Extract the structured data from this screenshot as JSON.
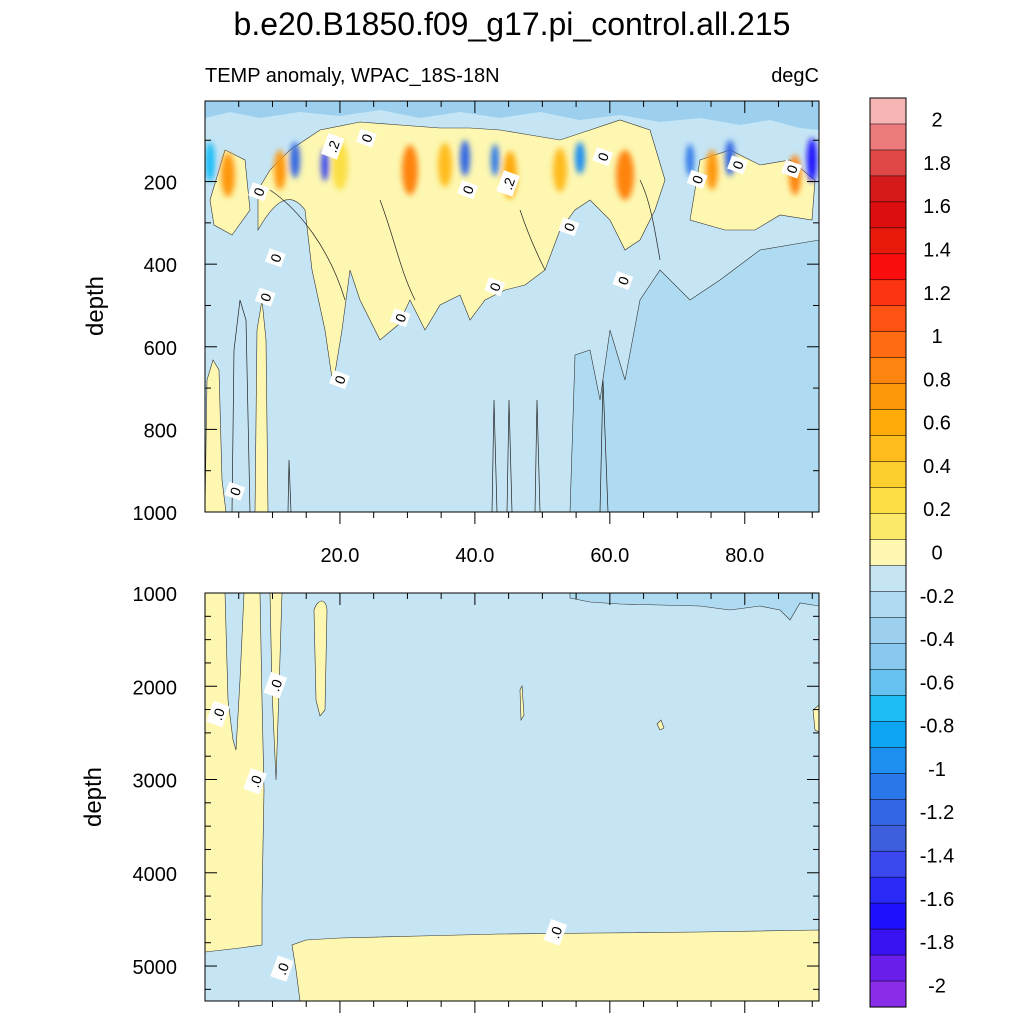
{
  "chart_data": {
    "type": "heatmap",
    "title": "b.e20.B1850.f09_g17.pi_control.all.215",
    "subtitle_left": "TEMP anomaly, WPAC_18S-18N",
    "subtitle_right": "degC",
    "xlabel": "",
    "x_range": [
      0,
      91
    ],
    "x_ticks": [
      "20.0",
      "40.0",
      "60.0",
      "80.0"
    ],
    "x_tick_values": [
      20,
      40,
      60,
      80
    ],
    "colorbar": {
      "min": -2.1,
      "max": 2.1,
      "step": 0.1,
      "labels": [
        "2",
        "1.8",
        "1.6",
        "1.4",
        "1.2",
        "1",
        "0.8",
        "0.6",
        "0.4",
        "0.2",
        "0",
        "-0.2",
        "-0.4",
        "-0.6",
        "-0.8",
        "-1",
        "-1.2",
        "-1.4",
        "-1.6",
        "-1.8",
        "-2"
      ],
      "label_values": [
        2,
        1.8,
        1.6,
        1.4,
        1.2,
        1,
        0.8,
        0.6,
        0.4,
        0.2,
        0,
        -0.2,
        -0.4,
        -0.6,
        -0.8,
        -1,
        -1.2,
        -1.4,
        -1.6,
        -1.8,
        -2
      ],
      "colors": [
        "#f6b4b4",
        "#ee7b7b",
        "#e04848",
        "#d41a1a",
        "#dc0e0e",
        "#e81a0c",
        "#fb0d0d",
        "#fd3412",
        "#fe5312",
        "#fe6b12",
        "#fe8410",
        "#fe980b",
        "#ffab09",
        "#ffbc1c",
        "#fcce2e",
        "#fbdf44",
        "#fbe969",
        "#fdf7b1",
        "#c5e5f4",
        "#aedbf1",
        "#9dd0ef",
        "#89c8ee",
        "#66c2f0",
        "#1fbdf6",
        "#0ea6f3",
        "#1e8ef1",
        "#2a77e9",
        "#3366e4",
        "#3e5fdd",
        "#3a48ee",
        "#2a2af6",
        "#1e10fb",
        "#3a12f1",
        "#6a1eec",
        "#8a2de9"
      ]
    },
    "panels": [
      {
        "name": "upper-ocean",
        "ylabel": "depth",
        "y_range": [
          5,
          1000
        ],
        "y_ticks": [
          "200",
          "400",
          "600",
          "800",
          "1000"
        ],
        "y_tick_values": [
          200,
          400,
          600,
          800,
          1000
        ],
        "contour_labels": [
          {
            "text": "0",
            "x": 4.5,
            "y": 950
          },
          {
            "text": "0",
            "x": 8,
            "y": 225
          },
          {
            "text": "0",
            "x": 9,
            "y": 480
          },
          {
            "text": "0",
            "x": 10.5,
            "y": 385
          },
          {
            "text": "0",
            "x": 20,
            "y": 680
          },
          {
            "text": ".2",
            "x": 19,
            "y": 115
          },
          {
            "text": "0",
            "x": 24,
            "y": 95
          },
          {
            "text": "0",
            "x": 29,
            "y": 530
          },
          {
            "text": "0",
            "x": 39,
            "y": 220
          },
          {
            "text": ".2",
            "x": 45,
            "y": 205
          },
          {
            "text": "0",
            "x": 43,
            "y": 455
          },
          {
            "text": "0",
            "x": 54,
            "y": 310
          },
          {
            "text": "0",
            "x": 59,
            "y": 140
          },
          {
            "text": "0",
            "x": 62,
            "y": 440
          },
          {
            "text": "0",
            "x": 73,
            "y": 195
          },
          {
            "text": "0",
            "x": 79,
            "y": 160
          },
          {
            "text": "0",
            "x": 87,
            "y": 170
          }
        ]
      },
      {
        "name": "deep-ocean",
        "ylabel": "depth",
        "y_range": [
          1000,
          5375
        ],
        "y_ticks": [
          "1000",
          "2000",
          "3000",
          "4000",
          "5000"
        ],
        "y_tick_values": [
          1000,
          2000,
          3000,
          4000,
          5000
        ],
        "contour_labels": [
          {
            "text": ".0",
            "x": 2,
            "y": 2300
          },
          {
            "text": ".0",
            "x": 10.5,
            "y": 1990
          },
          {
            "text": ".0",
            "x": 7.5,
            "y": 3020
          },
          {
            "text": ".0",
            "x": 52,
            "y": 4640
          },
          {
            "text": ".0",
            "x": 11.5,
            "y": 5030
          }
        ]
      }
    ]
  }
}
